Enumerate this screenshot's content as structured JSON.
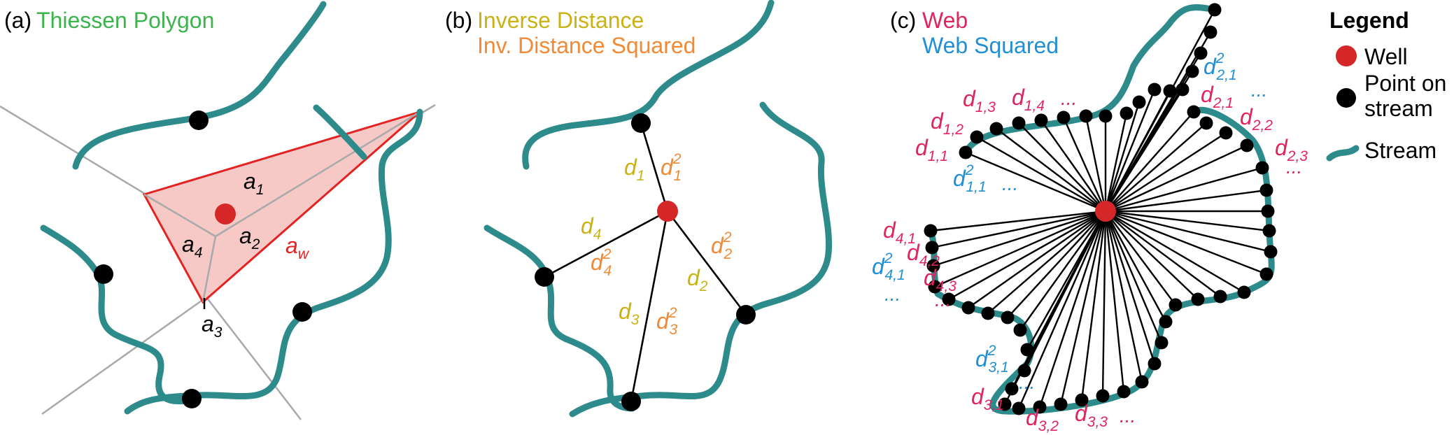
{
  "colors": {
    "stream": "#2e8b8b",
    "well": "#d62728",
    "point": "#000000",
    "thiessen": "#3cb44b",
    "inverse": "#c9b214",
    "inverse_sq": "#f08a36",
    "web": "#e0245e",
    "web_sq": "#1f8fd6",
    "voronoi": "#a9a9a9",
    "area_fill": "#f6c9c6"
  },
  "panel_a": {
    "letter": "(a)",
    "title": "Thiessen Polygon",
    "areas": [
      {
        "base": "a",
        "sub": "1"
      },
      {
        "base": "a",
        "sub": "2"
      },
      {
        "base": "a",
        "sub": "3"
      },
      {
        "base": "a",
        "sub": "4"
      },
      {
        "base": "a",
        "sub": "w"
      }
    ]
  },
  "panel_b": {
    "letter": "(b)",
    "title_inverse": "Inverse Distance",
    "title_inverse_sq": "Inv. Distance Squared",
    "distances": [
      {
        "base": "d",
        "sub": "1",
        "sq": "2"
      },
      {
        "base": "d",
        "sub": "2",
        "sq": "2"
      },
      {
        "base": "d",
        "sub": "3",
        "sq": "2"
      },
      {
        "base": "d",
        "sub": "4",
        "sq": "2"
      }
    ]
  },
  "panel_c": {
    "letter": "(c)",
    "title_web": "Web",
    "title_web_sq": "Web Squared",
    "ellipsis": "...",
    "labels": [
      {
        "base": "d",
        "sub": "1,1"
      },
      {
        "base": "d",
        "sub": "1,2"
      },
      {
        "base": "d",
        "sub": "1,3"
      },
      {
        "base": "d",
        "sub": "1,4"
      },
      {
        "base": "d",
        "sub": "2,1"
      },
      {
        "base": "d",
        "sub": "2,2"
      },
      {
        "base": "d",
        "sub": "2,3"
      },
      {
        "base": "d",
        "sub": "3,1"
      },
      {
        "base": "d",
        "sub": "3,2"
      },
      {
        "base": "d",
        "sub": "3,3"
      },
      {
        "base": "d",
        "sub": "4,1"
      },
      {
        "base": "d",
        "sub": "4,2"
      },
      {
        "base": "d",
        "sub": "4,3"
      }
    ],
    "squared_labels": [
      {
        "base": "d",
        "sub": "1,1",
        "sq": "2"
      },
      {
        "base": "d",
        "sub": "2,1",
        "sq": "2"
      },
      {
        "base": "d",
        "sub": "3,1",
        "sq": "2"
      },
      {
        "base": "d",
        "sub": "4,1",
        "sq": "2"
      }
    ]
  },
  "legend": {
    "title": "Legend",
    "well": "Well",
    "point_line1": "Point on",
    "point_line2": "stream",
    "stream": "Stream"
  }
}
